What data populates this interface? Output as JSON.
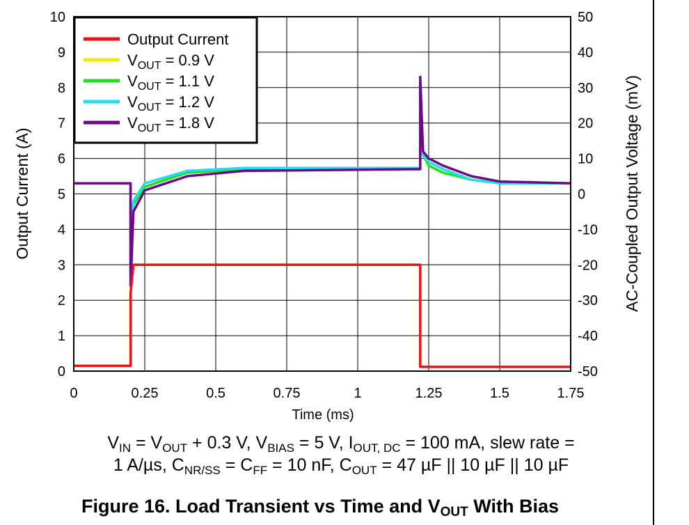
{
  "chart_data": {
    "type": "line",
    "xlabel": "Time (ms)",
    "ylabel_left": "Output Current (A)",
    "ylabel_right": "AC-Coupled Output Voltage (mV)",
    "xlim": [
      0,
      1.75
    ],
    "ylim_left": [
      0,
      10
    ],
    "ylim_right": [
      -50,
      50
    ],
    "x_ticks": [
      "0",
      "0.25",
      "0.5",
      "0.75",
      "1",
      "1.25",
      "1.5",
      "1.75"
    ],
    "y_left_ticks": [
      "0",
      "1",
      "2",
      "3",
      "4",
      "5",
      "6",
      "7",
      "8",
      "9",
      "10"
    ],
    "y_right_ticks": [
      "-50",
      "-40",
      "-30",
      "-20",
      "-10",
      "0",
      "10",
      "20",
      "30",
      "40",
      "50"
    ],
    "grid": true,
    "legend_position": "top-left",
    "legend": [
      {
        "sub": "",
        "text": "Output Current",
        "color": "#ee1111"
      },
      {
        "pre": "V",
        "sub": "OUT",
        "text": " = 0.9 V",
        "color": "#f2ee00"
      },
      {
        "pre": "V",
        "sub": "OUT",
        "text": " = 1.1 V",
        "color": "#22dd22"
      },
      {
        "pre": "V",
        "sub": "OUT",
        "text": " = 1.2 V",
        "color": "#22ddee"
      },
      {
        "pre": "V",
        "sub": "OUT",
        "text": " = 1.8 V",
        "color": "#6a0a88"
      }
    ],
    "series": [
      {
        "name": "Output Current",
        "axis": "left",
        "color": "#ee1111",
        "points": [
          [
            0,
            0.15
          ],
          [
            0.2,
            0.15
          ],
          [
            0.2,
            2.2
          ],
          [
            0.21,
            3.0
          ],
          [
            1.22,
            3.0
          ],
          [
            1.22,
            0.12
          ],
          [
            1.75,
            0.12
          ]
        ]
      },
      {
        "name": "VOUT = 0.9 V",
        "axis": "right",
        "color": "#f2ee00",
        "points": [
          [
            0,
            3
          ],
          [
            0.2,
            3
          ],
          [
            0.2,
            -20
          ],
          [
            0.21,
            -2
          ],
          [
            0.25,
            3
          ],
          [
            0.4,
            6
          ],
          [
            0.6,
            7
          ],
          [
            1.22,
            7
          ],
          [
            1.22,
            32
          ],
          [
            1.23,
            12
          ],
          [
            1.25,
            9
          ],
          [
            1.3,
            7
          ],
          [
            1.4,
            4
          ],
          [
            1.5,
            3
          ],
          [
            1.75,
            3
          ]
        ]
      },
      {
        "name": "VOUT = 1.1 V",
        "axis": "right",
        "color": "#22dd22",
        "points": [
          [
            0,
            3
          ],
          [
            0.2,
            3
          ],
          [
            0.2,
            -22
          ],
          [
            0.21,
            -3
          ],
          [
            0.25,
            2
          ],
          [
            0.4,
            6
          ],
          [
            0.6,
            7
          ],
          [
            1.22,
            7
          ],
          [
            1.22,
            32
          ],
          [
            1.23,
            11
          ],
          [
            1.25,
            8
          ],
          [
            1.3,
            6
          ],
          [
            1.4,
            4
          ],
          [
            1.5,
            3
          ],
          [
            1.75,
            3
          ]
        ]
      },
      {
        "name": "VOUT = 1.2 V",
        "axis": "right",
        "color": "#22ddee",
        "points": [
          [
            0,
            3
          ],
          [
            0.2,
            3
          ],
          [
            0.2,
            -22
          ],
          [
            0.21,
            -2
          ],
          [
            0.25,
            3
          ],
          [
            0.4,
            6.5
          ],
          [
            0.6,
            7.3
          ],
          [
            1.22,
            7.3
          ],
          [
            1.22,
            32
          ],
          [
            1.23,
            11
          ],
          [
            1.25,
            9
          ],
          [
            1.3,
            7
          ],
          [
            1.4,
            4
          ],
          [
            1.5,
            3
          ],
          [
            1.75,
            3
          ]
        ]
      },
      {
        "name": "VOUT = 1.8 V",
        "axis": "right",
        "color": "#6a0a88",
        "points": [
          [
            0,
            3
          ],
          [
            0.2,
            3
          ],
          [
            0.2,
            -26
          ],
          [
            0.21,
            -5
          ],
          [
            0.25,
            1
          ],
          [
            0.4,
            5
          ],
          [
            0.6,
            6.5
          ],
          [
            1.22,
            7
          ],
          [
            1.22,
            33
          ],
          [
            1.23,
            12
          ],
          [
            1.25,
            10
          ],
          [
            1.3,
            8
          ],
          [
            1.4,
            5
          ],
          [
            1.5,
            3.5
          ],
          [
            1.75,
            3
          ]
        ]
      }
    ]
  },
  "conditions": {
    "line1": "V<sub>IN</sub> = V<sub>OUT</sub> + 0.3 V, V<sub>BIAS</sub> = 5 V, I<sub>OUT, DC</sub> = 100 mA, slew rate =",
    "line2": "1 A/µs, C<sub>NR/SS</sub> = C<sub>FF</sub> = 10 nF, C<sub>OUT</sub> = 47 µF || 10 µF || 10 µF"
  },
  "caption": "Figure 16. Load Transient vs Time and V<sub>OUT</sub> With Bias"
}
